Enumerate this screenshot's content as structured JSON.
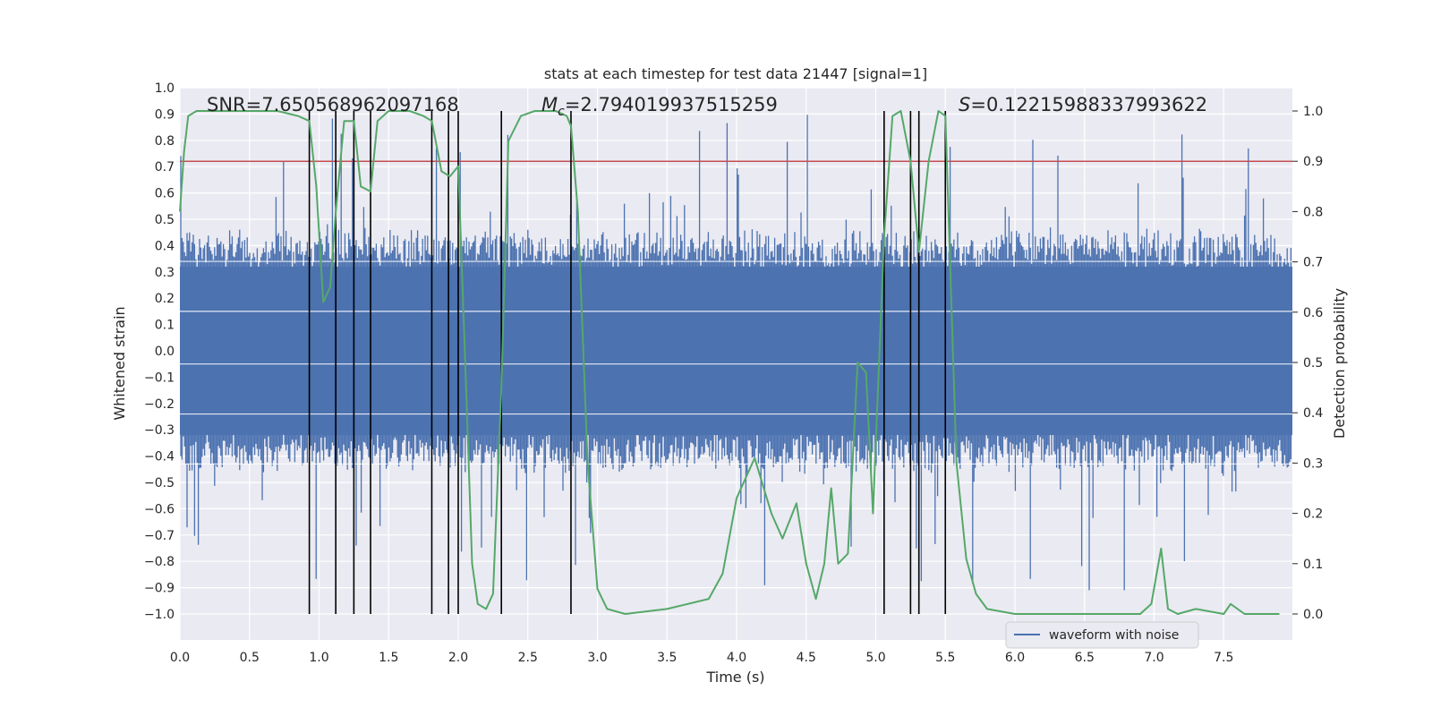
{
  "chart_data": {
    "type": "line",
    "title": "stats at each timestep for test data 21447 [signal=1]",
    "xlabel": "Time (s)",
    "ylabel": "Whitened strain",
    "y2label": "Detection probability",
    "xlim": [
      0.0,
      8.0
    ],
    "ylim": [
      -1.0,
      1.0
    ],
    "y2lim": [
      0.0,
      1.0
    ],
    "x_ticks": [
      0.0,
      0.5,
      1.0,
      1.5,
      2.0,
      2.5,
      3.0,
      3.5,
      4.0,
      4.5,
      5.0,
      5.5,
      6.0,
      6.5,
      7.0,
      7.5
    ],
    "x_tick_labels": [
      "0.0",
      "0.5",
      "1.0",
      "1.5",
      "2.0",
      "2.5",
      "3.0",
      "3.5",
      "4.0",
      "4.5",
      "5.0",
      "5.5",
      "6.0",
      "6.5",
      "7.0",
      "7.5"
    ],
    "y_ticks": [
      1.0,
      0.9,
      0.8,
      0.7,
      0.6,
      0.5,
      0.4,
      0.3,
      0.2,
      0.1,
      0.0,
      -0.1,
      -0.2,
      -0.3,
      -0.4,
      -0.5,
      -0.6,
      -0.7,
      -0.8,
      -0.9,
      -1.0
    ],
    "y_tick_labels": [
      "1.0",
      "0.9",
      "0.8",
      "0.7",
      "0.6",
      "0.5",
      "0.4",
      "0.3",
      "0.2",
      "0.1",
      "0.0",
      "−0.1",
      "−0.2",
      "−0.3",
      "−0.4",
      "−0.5",
      "−0.6",
      "−0.7",
      "−0.8",
      "−0.9",
      "−1.0"
    ],
    "y2_ticks": [
      1.0,
      0.9,
      0.8,
      0.7,
      0.6,
      0.5,
      0.4,
      0.3,
      0.2,
      0.1,
      0.0
    ],
    "y2_tick_labels": [
      "1.0",
      "0.9",
      "0.8",
      "0.7",
      "0.6",
      "0.5",
      "0.4",
      "0.3",
      "0.2",
      "0.1",
      "0.0"
    ],
    "annotations": {
      "snr": "SNR=7.650568962097168",
      "mc_symbol": "M",
      "mc_sub": "c",
      "mc_value": "=2.794019937515259",
      "s_symbol": "S",
      "s_value": "=0.12215988337993622"
    },
    "threshold": 0.9,
    "event_lines_x": [
      0.93,
      1.12,
      1.25,
      1.37,
      1.81,
      1.93,
      2.0,
      2.31,
      2.81,
      5.06,
      5.25,
      5.31,
      5.5
    ],
    "series": [
      {
        "name": "waveform with noise",
        "axis": "left",
        "color": "#4c72b0",
        "description": "dense whitened strain noise, core amplitude about ±0.35 with spikes up to about ±0.9",
        "core_amplitude": 0.35,
        "peak_amplitude": 0.91
      },
      {
        "name": "detection probability",
        "axis": "right",
        "color": "#55a868",
        "x": [
          0.0,
          0.03,
          0.06,
          0.12,
          0.3,
          0.5,
          0.7,
          0.85,
          0.93,
          0.98,
          1.03,
          1.08,
          1.12,
          1.18,
          1.25,
          1.3,
          1.37,
          1.42,
          1.5,
          1.65,
          1.75,
          1.81,
          1.88,
          1.94,
          2.0,
          2.05,
          2.1,
          2.14,
          2.2,
          2.25,
          2.31,
          2.36,
          2.45,
          2.55,
          2.7,
          2.78,
          2.81,
          2.86,
          2.93,
          3.0,
          3.07,
          3.2,
          3.5,
          3.8,
          3.9,
          4.0,
          4.13,
          4.25,
          4.33,
          4.43,
          4.5,
          4.57,
          4.63,
          4.68,
          4.73,
          4.8,
          4.87,
          4.93,
          4.98,
          5.06,
          5.12,
          5.18,
          5.25,
          5.31,
          5.38,
          5.45,
          5.5,
          5.58,
          5.65,
          5.72,
          5.8,
          6.0,
          6.5,
          6.9,
          6.98,
          7.05,
          7.1,
          7.17,
          7.3,
          7.5,
          7.55,
          7.65,
          7.9
        ],
        "values": [
          0.8,
          0.92,
          0.99,
          1.0,
          1.0,
          1.0,
          1.0,
          0.99,
          0.98,
          0.85,
          0.62,
          0.65,
          0.8,
          0.98,
          0.98,
          0.85,
          0.84,
          0.98,
          1.0,
          1.0,
          0.99,
          0.98,
          0.88,
          0.87,
          0.89,
          0.5,
          0.1,
          0.02,
          0.01,
          0.04,
          0.45,
          0.94,
          0.99,
          1.0,
          1.0,
          0.99,
          0.97,
          0.8,
          0.3,
          0.05,
          0.01,
          0.0,
          0.01,
          0.03,
          0.08,
          0.23,
          0.31,
          0.2,
          0.15,
          0.22,
          0.1,
          0.03,
          0.1,
          0.25,
          0.1,
          0.12,
          0.5,
          0.48,
          0.2,
          0.75,
          0.99,
          1.0,
          0.9,
          0.72,
          0.9,
          1.0,
          0.99,
          0.3,
          0.11,
          0.04,
          0.01,
          0.0,
          0.0,
          0.0,
          0.02,
          0.13,
          0.01,
          0.0,
          0.01,
          0.0,
          0.02,
          0.0,
          0.0
        ]
      },
      {
        "name": "threshold",
        "axis": "right",
        "color": "#c44e52",
        "value": 0.9
      }
    ],
    "legend": {
      "entries": [
        "waveform with noise"
      ],
      "placement": "lower-right"
    },
    "grid": true
  }
}
